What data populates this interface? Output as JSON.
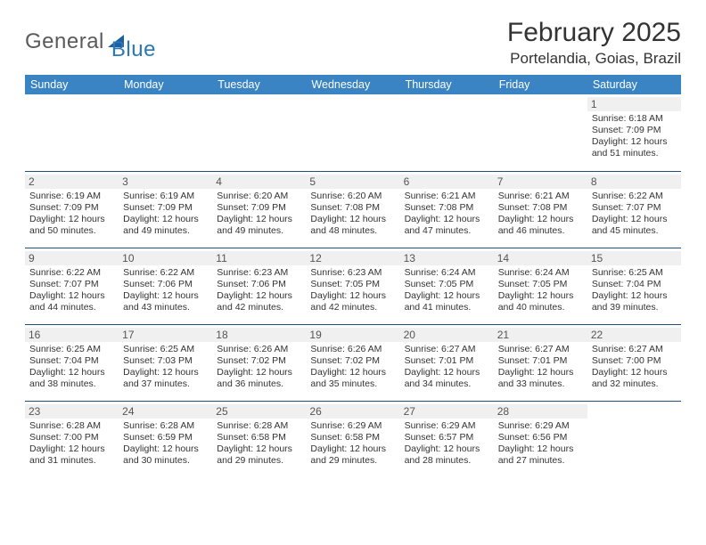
{
  "logo": {
    "text1": "General",
    "text2": "Blue"
  },
  "title": "February 2025",
  "location": "Portelandia, Goias, Brazil",
  "colors": {
    "header_bg": "#3a84c4",
    "week_divider": "#1f4f80",
    "daynum_bg": "#f0f0f0",
    "logo_gray": "#5a5a5a",
    "logo_blue": "#2a78b8",
    "logo_tri": "#1d5fa0"
  },
  "dow": [
    "Sunday",
    "Monday",
    "Tuesday",
    "Wednesday",
    "Thursday",
    "Friday",
    "Saturday"
  ],
  "weeks": [
    [
      null,
      null,
      null,
      null,
      null,
      null,
      {
        "n": "1",
        "sr": "Sunrise: 6:18 AM",
        "ss": "Sunset: 7:09 PM",
        "dl": "Daylight: 12 hours and 51 minutes."
      }
    ],
    [
      {
        "n": "2",
        "sr": "Sunrise: 6:19 AM",
        "ss": "Sunset: 7:09 PM",
        "dl": "Daylight: 12 hours and 50 minutes."
      },
      {
        "n": "3",
        "sr": "Sunrise: 6:19 AM",
        "ss": "Sunset: 7:09 PM",
        "dl": "Daylight: 12 hours and 49 minutes."
      },
      {
        "n": "4",
        "sr": "Sunrise: 6:20 AM",
        "ss": "Sunset: 7:09 PM",
        "dl": "Daylight: 12 hours and 49 minutes."
      },
      {
        "n": "5",
        "sr": "Sunrise: 6:20 AM",
        "ss": "Sunset: 7:08 PM",
        "dl": "Daylight: 12 hours and 48 minutes."
      },
      {
        "n": "6",
        "sr": "Sunrise: 6:21 AM",
        "ss": "Sunset: 7:08 PM",
        "dl": "Daylight: 12 hours and 47 minutes."
      },
      {
        "n": "7",
        "sr": "Sunrise: 6:21 AM",
        "ss": "Sunset: 7:08 PM",
        "dl": "Daylight: 12 hours and 46 minutes."
      },
      {
        "n": "8",
        "sr": "Sunrise: 6:22 AM",
        "ss": "Sunset: 7:07 PM",
        "dl": "Daylight: 12 hours and 45 minutes."
      }
    ],
    [
      {
        "n": "9",
        "sr": "Sunrise: 6:22 AM",
        "ss": "Sunset: 7:07 PM",
        "dl": "Daylight: 12 hours and 44 minutes."
      },
      {
        "n": "10",
        "sr": "Sunrise: 6:22 AM",
        "ss": "Sunset: 7:06 PM",
        "dl": "Daylight: 12 hours and 43 minutes."
      },
      {
        "n": "11",
        "sr": "Sunrise: 6:23 AM",
        "ss": "Sunset: 7:06 PM",
        "dl": "Daylight: 12 hours and 42 minutes."
      },
      {
        "n": "12",
        "sr": "Sunrise: 6:23 AM",
        "ss": "Sunset: 7:05 PM",
        "dl": "Daylight: 12 hours and 42 minutes."
      },
      {
        "n": "13",
        "sr": "Sunrise: 6:24 AM",
        "ss": "Sunset: 7:05 PM",
        "dl": "Daylight: 12 hours and 41 minutes."
      },
      {
        "n": "14",
        "sr": "Sunrise: 6:24 AM",
        "ss": "Sunset: 7:05 PM",
        "dl": "Daylight: 12 hours and 40 minutes."
      },
      {
        "n": "15",
        "sr": "Sunrise: 6:25 AM",
        "ss": "Sunset: 7:04 PM",
        "dl": "Daylight: 12 hours and 39 minutes."
      }
    ],
    [
      {
        "n": "16",
        "sr": "Sunrise: 6:25 AM",
        "ss": "Sunset: 7:04 PM",
        "dl": "Daylight: 12 hours and 38 minutes."
      },
      {
        "n": "17",
        "sr": "Sunrise: 6:25 AM",
        "ss": "Sunset: 7:03 PM",
        "dl": "Daylight: 12 hours and 37 minutes."
      },
      {
        "n": "18",
        "sr": "Sunrise: 6:26 AM",
        "ss": "Sunset: 7:02 PM",
        "dl": "Daylight: 12 hours and 36 minutes."
      },
      {
        "n": "19",
        "sr": "Sunrise: 6:26 AM",
        "ss": "Sunset: 7:02 PM",
        "dl": "Daylight: 12 hours and 35 minutes."
      },
      {
        "n": "20",
        "sr": "Sunrise: 6:27 AM",
        "ss": "Sunset: 7:01 PM",
        "dl": "Daylight: 12 hours and 34 minutes."
      },
      {
        "n": "21",
        "sr": "Sunrise: 6:27 AM",
        "ss": "Sunset: 7:01 PM",
        "dl": "Daylight: 12 hours and 33 minutes."
      },
      {
        "n": "22",
        "sr": "Sunrise: 6:27 AM",
        "ss": "Sunset: 7:00 PM",
        "dl": "Daylight: 12 hours and 32 minutes."
      }
    ],
    [
      {
        "n": "23",
        "sr": "Sunrise: 6:28 AM",
        "ss": "Sunset: 7:00 PM",
        "dl": "Daylight: 12 hours and 31 minutes."
      },
      {
        "n": "24",
        "sr": "Sunrise: 6:28 AM",
        "ss": "Sunset: 6:59 PM",
        "dl": "Daylight: 12 hours and 30 minutes."
      },
      {
        "n": "25",
        "sr": "Sunrise: 6:28 AM",
        "ss": "Sunset: 6:58 PM",
        "dl": "Daylight: 12 hours and 29 minutes."
      },
      {
        "n": "26",
        "sr": "Sunrise: 6:29 AM",
        "ss": "Sunset: 6:58 PM",
        "dl": "Daylight: 12 hours and 29 minutes."
      },
      {
        "n": "27",
        "sr": "Sunrise: 6:29 AM",
        "ss": "Sunset: 6:57 PM",
        "dl": "Daylight: 12 hours and 28 minutes."
      },
      {
        "n": "28",
        "sr": "Sunrise: 6:29 AM",
        "ss": "Sunset: 6:56 PM",
        "dl": "Daylight: 12 hours and 27 minutes."
      },
      null
    ]
  ]
}
